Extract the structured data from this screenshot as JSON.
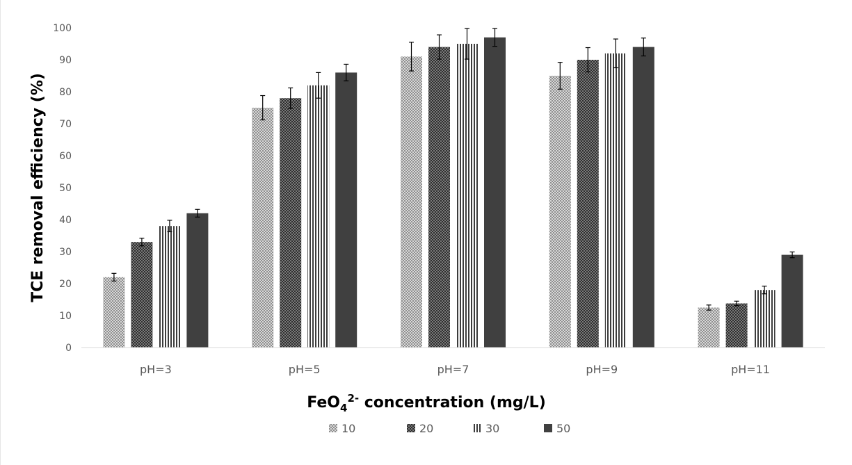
{
  "chart_data": {
    "type": "bar",
    "categories": [
      "pH=3",
      "pH=5",
      "pH=7",
      "pH=9",
      "pH=11"
    ],
    "series": [
      {
        "name": "10",
        "values": [
          22,
          75,
          91,
          85,
          12.5
        ],
        "errors": [
          1.2,
          3.8,
          4.5,
          4.2,
          0.8
        ],
        "pattern": "crosshatch-light"
      },
      {
        "name": "20",
        "values": [
          33,
          78,
          94,
          90,
          13.8
        ],
        "errors": [
          1.2,
          3.2,
          3.8,
          3.8,
          0.7
        ],
        "pattern": "crosshatch-dark"
      },
      {
        "name": "30",
        "values": [
          38,
          82,
          95,
          92,
          18
        ],
        "errors": [
          1.8,
          4.0,
          4.8,
          4.5,
          1.2
        ],
        "pattern": "vertical-lines"
      },
      {
        "name": "50",
        "values": [
          42,
          86,
          97,
          94,
          29
        ],
        "errors": [
          1.2,
          2.6,
          2.8,
          2.8,
          0.9
        ],
        "pattern": "solid"
      }
    ],
    "ylabel": "TCE removal efficiency  (%)",
    "xlabel": {
      "prefix": "FeO",
      "subscript": "4",
      "superscript": "2-",
      "suffix": " concentration (mg/L)"
    },
    "ylim": [
      0,
      100
    ],
    "yticks": [
      0,
      10,
      20,
      30,
      40,
      50,
      60,
      70,
      80,
      90,
      100
    ],
    "grid": false,
    "legend_position": "bottom",
    "colors": {
      "dark": "#404040",
      "axis": "#d9d9d9",
      "error": "#000000"
    }
  }
}
